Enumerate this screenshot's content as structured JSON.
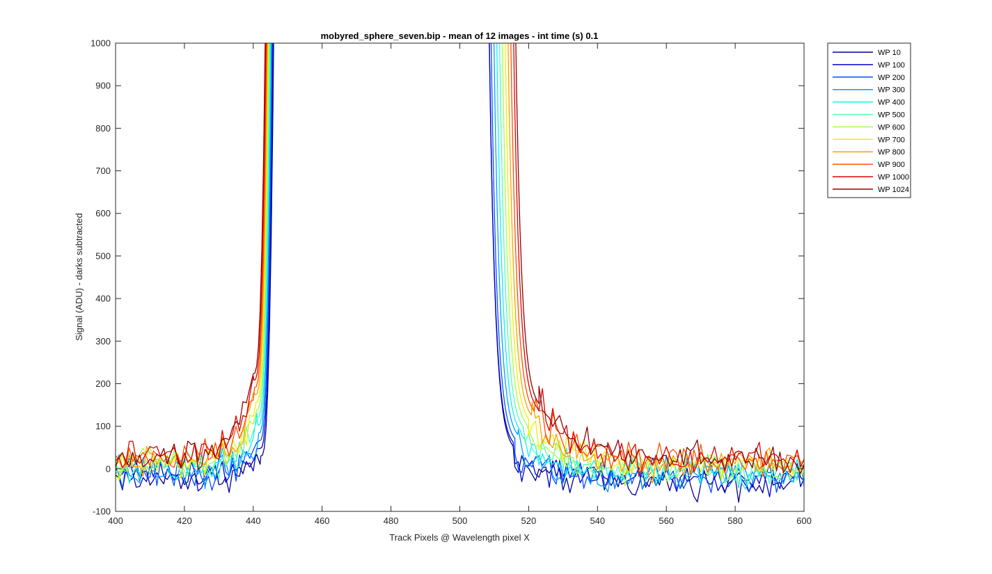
{
  "chart_data": {
    "type": "line",
    "title": "mobyred_sphere_seven.bip - mean of 12 images - int time (s) 0.1",
    "xlabel": "Track Pixels @ Wavelength pixel X",
    "ylabel": "Signal (ADU) - darks subtracted",
    "xlim": [
      400,
      600
    ],
    "ylim": [
      -100,
      1000
    ],
    "xticks": [
      "400",
      "420",
      "440",
      "460",
      "480",
      "500",
      "520",
      "540",
      "560",
      "580",
      "600"
    ],
    "yticks": [
      "-100",
      "0",
      "100",
      "200",
      "300",
      "400",
      "500",
      "600",
      "700",
      "800",
      "900",
      "1000"
    ],
    "grid": false,
    "legend_position": "outside-top-right",
    "series": [
      {
        "name": "WP 10",
        "color": "#00008F",
        "left_edge": 446.2,
        "right_edge": 508.5,
        "left_base": -20,
        "right_base": -30
      },
      {
        "name": "WP 100",
        "color": "#0000D0",
        "left_edge": 446.0,
        "right_edge": 508.5,
        "left_base": -15,
        "right_base": -25
      },
      {
        "name": "WP 200",
        "color": "#0050FF",
        "left_edge": 445.8,
        "right_edge": 509.0,
        "left_base": -10,
        "right_base": -20
      },
      {
        "name": "WP 300",
        "color": "#00A0FF",
        "left_edge": 445.6,
        "right_edge": 509.8,
        "left_base": -5,
        "right_base": -15
      },
      {
        "name": "WP 400",
        "color": "#10F0F0",
        "left_edge": 445.4,
        "right_edge": 510.6,
        "left_base": 0,
        "right_base": -8
      },
      {
        "name": "WP 500",
        "color": "#50FFB0",
        "left_edge": 445.2,
        "right_edge": 511.4,
        "left_base": 5,
        "right_base": -2
      },
      {
        "name": "WP 600",
        "color": "#A0FF50",
        "left_edge": 445.0,
        "right_edge": 512.2,
        "left_base": 10,
        "right_base": 4
      },
      {
        "name": "WP 700",
        "color": "#F0F000",
        "left_edge": 444.8,
        "right_edge": 513.0,
        "left_base": 15,
        "right_base": 10
      },
      {
        "name": "WP 800",
        "color": "#FFA000",
        "left_edge": 444.6,
        "right_edge": 513.8,
        "left_base": 20,
        "right_base": 14
      },
      {
        "name": "WP 900",
        "color": "#FF5000",
        "left_edge": 444.4,
        "right_edge": 514.6,
        "left_base": 24,
        "right_base": 18
      },
      {
        "name": "WP 1000",
        "color": "#E00000",
        "left_edge": 444.2,
        "right_edge": 515.4,
        "left_base": 28,
        "right_base": 22
      },
      {
        "name": "WP 1024",
        "color": "#900000",
        "left_edge": 444.0,
        "right_edge": 516.0,
        "left_base": 30,
        "right_base": 24
      }
    ]
  }
}
